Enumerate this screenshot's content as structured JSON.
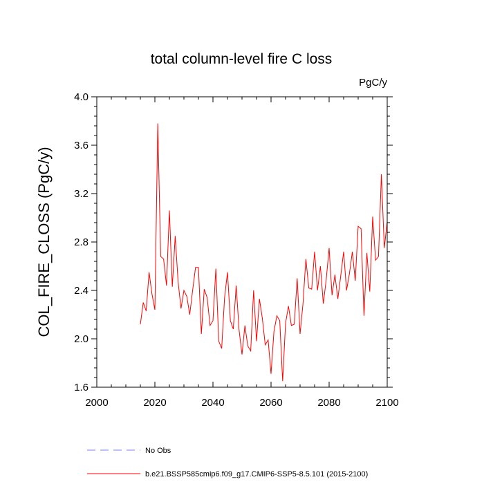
{
  "chart_data": {
    "type": "line",
    "title": "total column-level fire C loss",
    "units_label": "PgC/y",
    "ylabel": "COL_FIRE_CLOSS  (PgC/y)",
    "xlabel": "",
    "xlim": [
      2000,
      2100
    ],
    "ylim": [
      1.6,
      4.0
    ],
    "xticks": [
      "2000",
      "2020",
      "2040",
      "2060",
      "2080",
      "2100"
    ],
    "yticks": [
      "1.6",
      "2.0",
      "2.4",
      "2.8",
      "3.2",
      "3.6",
      "4.0"
    ],
    "legend": [
      {
        "label": "No Obs",
        "color": "#7b7bff",
        "style": "dashed"
      },
      {
        "label": "b.e21.BSSP585cmip6.f09_g17.CMIP6-SSP5-8.5.101 (2015-2100)",
        "color": "#ff0000",
        "style": "solid"
      }
    ],
    "series": [
      {
        "name": "b.e21.BSSP585cmip6.f09_g17.CMIP6-SSP5-8.5.101 (2015-2100)",
        "color": "#ff0000",
        "x": [
          2015,
          2016,
          2017,
          2018,
          2019,
          2020,
          2021,
          2022,
          2023,
          2024,
          2025,
          2026,
          2027,
          2028,
          2029,
          2030,
          2031,
          2032,
          2033,
          2034,
          2035,
          2036,
          2037,
          2038,
          2039,
          2040,
          2041,
          2042,
          2043,
          2044,
          2045,
          2046,
          2047,
          2048,
          2049,
          2050,
          2051,
          2052,
          2053,
          2054,
          2055,
          2056,
          2057,
          2058,
          2059,
          2060,
          2061,
          2062,
          2063,
          2064,
          2065,
          2066,
          2067,
          2068,
          2069,
          2070,
          2071,
          2072,
          2073,
          2074,
          2075,
          2076,
          2077,
          2078,
          2079,
          2080,
          2081,
          2082,
          2083,
          2084,
          2085,
          2086,
          2087,
          2088,
          2089,
          2090,
          2091,
          2092,
          2093,
          2094,
          2095,
          2096,
          2097,
          2098,
          2099,
          2100
        ],
        "y": [
          2.12,
          2.3,
          2.23,
          2.55,
          2.37,
          2.24,
          3.78,
          2.68,
          2.66,
          2.44,
          3.06,
          2.43,
          2.85,
          2.47,
          2.25,
          2.4,
          2.35,
          2.2,
          2.4,
          2.59,
          2.59,
          2.04,
          2.41,
          2.34,
          2.11,
          2.15,
          2.58,
          1.98,
          1.92,
          2.34,
          2.55,
          2.15,
          2.08,
          2.44,
          2.07,
          1.87,
          2.11,
          1.94,
          1.9,
          2.4,
          1.98,
          2.33,
          2.17,
          1.95,
          1.99,
          1.71,
          2.06,
          2.19,
          2.15,
          1.65,
          2.13,
          2.27,
          2.11,
          2.12,
          2.5,
          2.04,
          2.29,
          2.66,
          2.42,
          2.41,
          2.72,
          2.4,
          2.6,
          2.29,
          2.49,
          2.75,
          2.36,
          2.53,
          2.33,
          2.52,
          2.72,
          2.4,
          2.54,
          2.72,
          2.48,
          2.93,
          2.91,
          2.19,
          2.71,
          2.39,
          3.01,
          2.65,
          2.68,
          3.36,
          2.75,
          2.97
        ]
      }
    ]
  }
}
